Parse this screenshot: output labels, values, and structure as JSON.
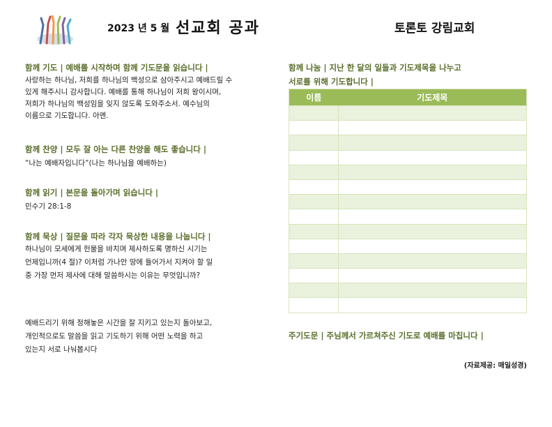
{
  "header": {
    "date": "2023 년 5 월",
    "title": "선교회 공과",
    "church": "토론토 강림교회"
  },
  "left": {
    "prayer": {
      "heading": "함께 기도 | 예배를 시작하며 함께 기도문을 읽습니다 |",
      "lines": [
        "사랑하는 하나님, 저희를 하나님의 백성으로 삼아주시고 예배드릴 수",
        "있게 해주시니 감사합니다. 예배를 통해 하나님이 저희 왕이시며,",
        "저희가 하나님의 백성임을 잊지 않도록 도와주소서. 예수님의",
        "이름으로 기도합니다. 아멘."
      ]
    },
    "praise": {
      "heading": "함께 찬양 | 모두 잘 아는 다른 찬양을 해도 좋습니다 |",
      "text": "“나는 예배자입니다”(나는 하나님을 예배하는)"
    },
    "reading": {
      "heading": "함께 읽기 | 본문을 돌아가며 읽습니다 |",
      "text": "민수기 28:1-8"
    },
    "meditation": {
      "heading": "함께 묵상 | 질문을 따라 각자 묵상한 내용을 나눕니다 |",
      "lines": [
        "하나님이 모세에게 헌물을 바치며 제사하도록 명하신 시기는",
        "언제입니까(4 절)? 이처럼 가나안 땅에 들어가서 지켜야 할 일",
        "중 가장 먼저 제사에 대해 말씀하시는 이유는 무엇입니까?"
      ]
    },
    "reflection": {
      "lines": [
        "예배드리기 위해 정해놓은 시간을 잘 지키고 있는지 돌아보고,",
        "개인적으로도 말씀을 읽고 기도하기 위해 어떤 노력을 하고",
        "있는지 서로 나눠봅시다"
      ]
    }
  },
  "right": {
    "sharing": {
      "heading_line1": "함께 나눔 | 지난 한 달의 일들과 기도제목을 나누고",
      "heading_line2": "서로를 위해 기도합니다 |"
    },
    "table": {
      "col_name": "이름",
      "col_topic": "기도제목"
    },
    "closing": {
      "heading": "주기도문 | 주님께서 가르쳐주신 기도로 예배를 마칩니다 |"
    },
    "credit": "(자료제공: 매일성경)"
  },
  "colors": {
    "accent": "#9bbb59",
    "heading": "#5b6e2b",
    "row_shade": "#eaf1dd"
  },
  "icons": {
    "logo": "people-raising-hands-icon"
  }
}
